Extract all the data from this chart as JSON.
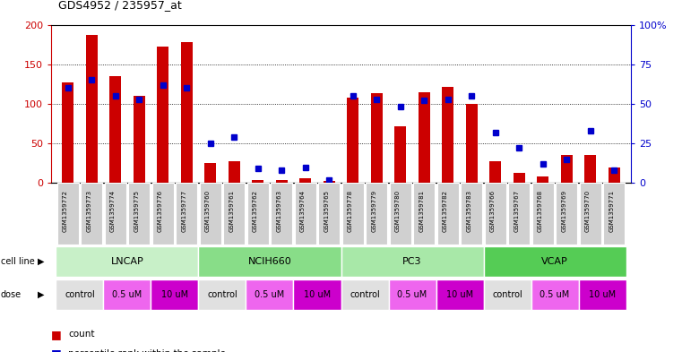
{
  "title": "GDS4952 / 235957_at",
  "samples": [
    "GSM1359772",
    "GSM1359773",
    "GSM1359774",
    "GSM1359775",
    "GSM1359776",
    "GSM1359777",
    "GSM1359760",
    "GSM1359761",
    "GSM1359762",
    "GSM1359763",
    "GSM1359764",
    "GSM1359765",
    "GSM1359778",
    "GSM1359779",
    "GSM1359780",
    "GSM1359781",
    "GSM1359782",
    "GSM1359783",
    "GSM1359766",
    "GSM1359767",
    "GSM1359768",
    "GSM1359769",
    "GSM1359770",
    "GSM1359771"
  ],
  "counts": [
    127,
    187,
    135,
    110,
    172,
    178,
    25,
    27,
    4,
    4,
    6,
    3,
    108,
    113,
    72,
    115,
    121,
    100,
    27,
    13,
    8,
    35,
    35,
    20
  ],
  "percentiles": [
    60,
    65,
    55,
    53,
    62,
    60,
    25,
    29,
    9,
    8,
    10,
    2,
    55,
    53,
    48,
    52,
    53,
    55,
    32,
    22,
    12,
    15,
    33,
    8
  ],
  "doses": [
    "control",
    "control",
    "0.5 uM",
    "0.5 uM",
    "10 uM",
    "10 uM",
    "control",
    "control",
    "0.5 uM",
    "0.5 uM",
    "10 uM",
    "10 uM",
    "control",
    "control",
    "0.5 uM",
    "0.5 uM",
    "10 uM",
    "10 uM",
    "control",
    "control",
    "0.5 uM",
    "0.5 uM",
    "10 uM",
    "10 uM"
  ],
  "cell_line_groups": [
    {
      "name": "LNCAP",
      "start": 0,
      "end": 5
    },
    {
      "name": "NCIH660",
      "start": 6,
      "end": 11
    },
    {
      "name": "PC3",
      "start": 12,
      "end": 17
    },
    {
      "name": "VCAP",
      "start": 18,
      "end": 23
    }
  ],
  "bar_color": "#cc0000",
  "dot_color": "#0000cc",
  "cell_line_color_light": "#b8f0b8",
  "cell_line_color_mid": "#66dd66",
  "tick_color_left": "#cc0000",
  "tick_color_right": "#0000cc",
  "ylim_left": [
    0,
    200
  ],
  "ylim_right": [
    0,
    100
  ],
  "yticks_left": [
    0,
    50,
    100,
    150,
    200
  ],
  "ytick_labels_left": [
    "0",
    "50",
    "100",
    "150",
    "200"
  ],
  "yticks_right": [
    0,
    25,
    50,
    75,
    100
  ],
  "ytick_labels_right": [
    "0",
    "25",
    "50",
    "75",
    "100%"
  ],
  "dose_colors": {
    "control": "#e0e0e0",
    "0.5 uM": "#ee66ee",
    "10 uM": "#cc00cc"
  },
  "cell_line_colors": [
    "#c0f0c0",
    "#a0e8a0",
    "#80e080",
    "#60d860"
  ]
}
